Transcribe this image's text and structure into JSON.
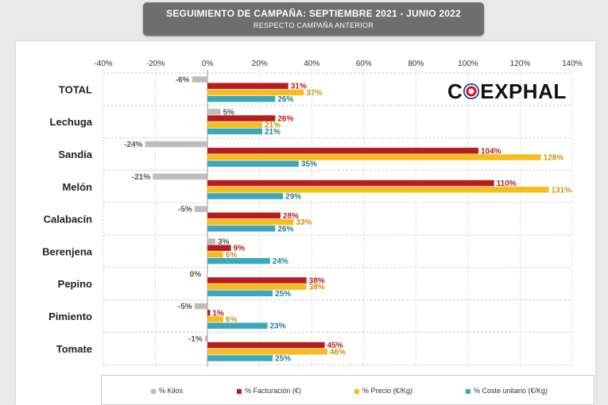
{
  "header": {
    "title": "SEGUIMIENTO DE CAMPAÑA: SEPTIEMBRE 2021 - JUNIO 2022",
    "subtitle": "RESPECTO CAMPAÑA ANTERIOR"
  },
  "logo": {
    "part1": "C",
    "part2": "EXPHAL"
  },
  "colors": {
    "kilos": "#bdbdbd",
    "facturacion": "#b81c1c",
    "precio": "#f5bd1f",
    "coste": "#3aa7bd",
    "label_kilos": "#555555",
    "label_facturacion": "#b81c1c",
    "label_precio": "#c9960c",
    "label_coste": "#1f7f93"
  },
  "chart_data": {
    "type": "bar",
    "orientation": "horizontal",
    "title": "",
    "xlim": [
      -40,
      140
    ],
    "ticks": [
      -40,
      -20,
      0,
      20,
      40,
      60,
      80,
      100,
      120,
      140
    ],
    "tick_labels": [
      "-40%",
      "-20%",
      "0%",
      "20%",
      "40%",
      "60%",
      "80%",
      "100%",
      "120%",
      "140%"
    ],
    "categories": [
      "TOTAL",
      "Lechuga",
      "Sandía",
      "Melón",
      "Calabacín",
      "Berenjena",
      "Pepino",
      "Pimiento",
      "Tomate"
    ],
    "series": [
      {
        "name": "% Kilos",
        "key": "kilos",
        "values": [
          -6,
          5,
          -24,
          -21,
          -5,
          3,
          0,
          -5,
          -1
        ]
      },
      {
        "name": "% Facturación (€)",
        "key": "facturacion",
        "values": [
          31,
          26,
          104,
          110,
          28,
          9,
          38,
          1,
          45
        ]
      },
      {
        "name": "% Precio (€/Kg)",
        "key": "precio",
        "values": [
          37,
          21,
          128,
          131,
          33,
          6,
          38,
          6,
          46
        ]
      },
      {
        "name": "% Coste unitario (€/Kg)",
        "key": "coste",
        "values": [
          26,
          21,
          35,
          29,
          26,
          24,
          25,
          23,
          25
        ]
      }
    ],
    "legend_position": "bottom",
    "grid": "vertical dashed"
  }
}
